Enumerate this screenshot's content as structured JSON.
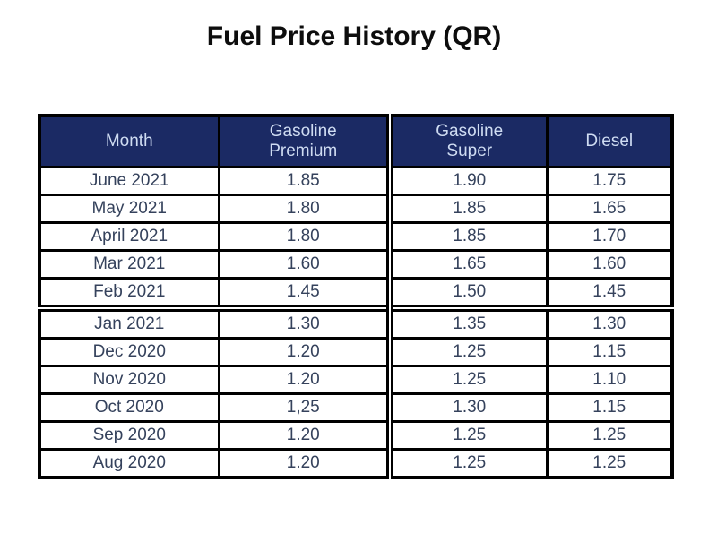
{
  "title": "Fuel Price History (QR)",
  "colors": {
    "page_bg": "#ffffff",
    "title_text": "#0d0d0d",
    "header_bg": "#1b2a64",
    "header_text": "#cfdcf2",
    "body_text": "#35425c",
    "border": "#000000"
  },
  "chart_data": {
    "type": "table",
    "title": "Fuel Price History (QR)",
    "columns": [
      "Month",
      "Gasoline Premium",
      "Gasoline Super",
      "Diesel"
    ],
    "header_labels": [
      "Month",
      "Gasoline\nPremium",
      "Gasoline\nSuper",
      "Diesel"
    ],
    "section_start_row_index": 5,
    "rows": [
      [
        "June 2021",
        "1.85",
        "1.90",
        "1.75"
      ],
      [
        "May 2021",
        "1.80",
        "1.85",
        "1.65"
      ],
      [
        "April 2021",
        "1.80",
        "1.85",
        "1.70"
      ],
      [
        "Mar 2021",
        "1.60",
        "1.65",
        "1.60"
      ],
      [
        "Feb 2021",
        "1.45",
        "1.50",
        "1.45"
      ],
      [
        "Jan 2021",
        "1.30",
        "1.35",
        "1.30"
      ],
      [
        "Dec 2020",
        "1.20",
        "1.25",
        "1.15"
      ],
      [
        "Nov 2020",
        "1.20",
        "1.25",
        "1.10"
      ],
      [
        "Oct 2020",
        "1,25",
        "1.30",
        "1.15"
      ],
      [
        "Sep 2020",
        "1.20",
        "1.25",
        "1.25"
      ],
      [
        "Aug 2020",
        "1.20",
        "1.25",
        "1.25"
      ]
    ]
  }
}
